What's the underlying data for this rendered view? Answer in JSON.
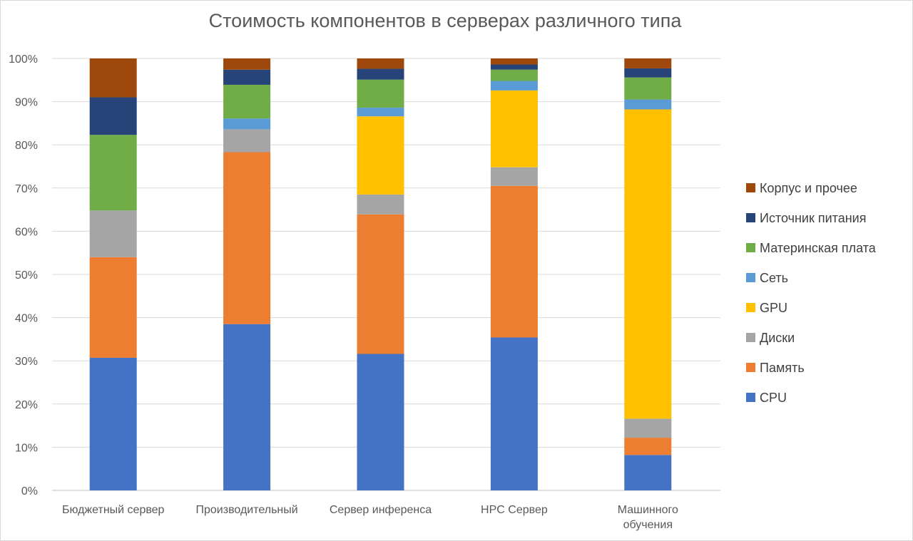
{
  "chart_data": {
    "type": "bar",
    "stacked": true,
    "percent_stacked": true,
    "title": "Стоимость компонентов в серверах различного типа",
    "categories": [
      [
        "Бюджетный сервер"
      ],
      [
        "Производительный"
      ],
      [
        "Сервер инференса"
      ],
      [
        "HPC Сервер"
      ],
      [
        "Машинного",
        "обучения"
      ]
    ],
    "y_ticks": [
      "0%",
      "10%",
      "20%",
      "30%",
      "40%",
      "50%",
      "60%",
      "70%",
      "80%",
      "90%",
      "100%"
    ],
    "ylim": [
      0,
      100
    ],
    "grid": true,
    "legend_position": "right",
    "series": [
      {
        "name": "CPU",
        "color": "#4472c4",
        "values": [
          30.7,
          38.5,
          31.6,
          35.4,
          8.2
        ]
      },
      {
        "name": "Память",
        "color": "#ed7d31",
        "values": [
          23.3,
          39.8,
          32.3,
          35.1,
          4.0
        ]
      },
      {
        "name": "Диски",
        "color": "#a5a5a5",
        "values": [
          10.8,
          5.3,
          4.6,
          4.3,
          4.4
        ]
      },
      {
        "name": "GPU",
        "color": "#ffc000",
        "values": [
          0,
          0,
          18.1,
          17.8,
          71.6
        ]
      },
      {
        "name": "Сеть",
        "color": "#5b9bd5",
        "values": [
          0,
          2.5,
          2.0,
          2.2,
          2.3
        ]
      },
      {
        "name": "Материнская плата",
        "color": "#70ad47",
        "values": [
          17.5,
          7.8,
          6.5,
          2.6,
          5.1
        ]
      },
      {
        "name": "Источник питания",
        "color": "#264478",
        "values": [
          8.7,
          3.5,
          2.5,
          1.2,
          2.1
        ]
      },
      {
        "name": "Корпус и прочее",
        "color": "#9e480e",
        "values": [
          9.0,
          2.6,
          2.4,
          1.4,
          2.3
        ]
      }
    ]
  }
}
